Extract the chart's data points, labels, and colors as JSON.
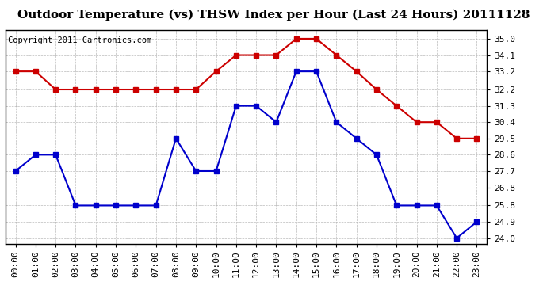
{
  "title": "Outdoor Temperature (vs) THSW Index per Hour (Last 24 Hours) 20111128",
  "copyright": "Copyright 2011 Cartronics.com",
  "hours": [
    "00:00",
    "01:00",
    "02:00",
    "03:00",
    "04:00",
    "05:00",
    "06:00",
    "07:00",
    "08:00",
    "09:00",
    "10:00",
    "11:00",
    "12:00",
    "13:00",
    "14:00",
    "15:00",
    "16:00",
    "17:00",
    "18:00",
    "19:00",
    "20:00",
    "21:00",
    "22:00",
    "23:00"
  ],
  "red_data": [
    33.2,
    33.2,
    32.2,
    32.2,
    32.2,
    32.2,
    32.2,
    32.2,
    32.2,
    32.2,
    33.2,
    34.1,
    34.1,
    34.1,
    35.0,
    35.0,
    34.1,
    33.2,
    32.2,
    31.3,
    30.4,
    30.4,
    29.5,
    29.5
  ],
  "blue_data": [
    27.7,
    28.6,
    28.6,
    25.8,
    25.8,
    25.8,
    25.8,
    25.8,
    29.5,
    27.7,
    27.7,
    31.3,
    31.3,
    30.4,
    33.2,
    33.2,
    30.4,
    29.5,
    28.6,
    25.8,
    25.8,
    25.8,
    24.0,
    24.9
  ],
  "y_ticks": [
    24.0,
    24.9,
    25.8,
    26.8,
    27.7,
    28.6,
    29.5,
    30.4,
    31.3,
    32.2,
    33.2,
    34.1,
    35.0
  ],
  "ylim": [
    23.7,
    35.5
  ],
  "red_color": "#cc0000",
  "blue_color": "#0000cc",
  "background_color": "#ffffff",
  "grid_color": "#aaaaaa",
  "title_fontsize": 11,
  "copyright_fontsize": 7.5,
  "axis_fontsize": 8,
  "marker_size": 4,
  "line_width": 1.5
}
